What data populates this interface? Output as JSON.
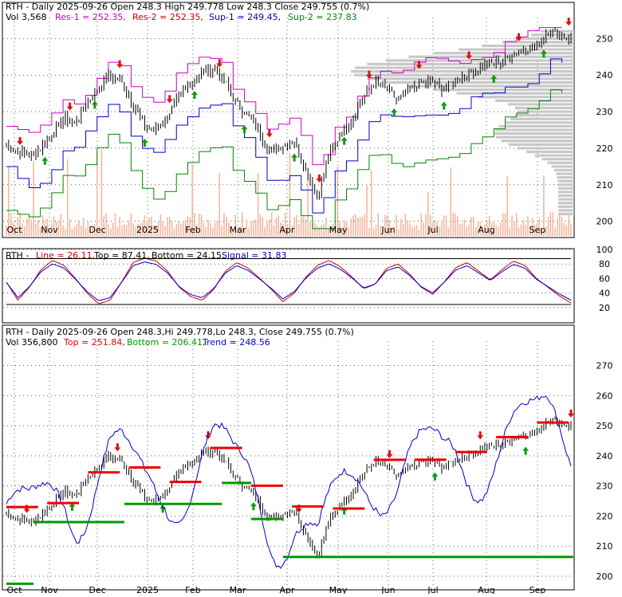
{
  "colors": {
    "res": "#cc00cc",
    "sup1": "#0000cc",
    "sup2": "#008800",
    "down": "#dd1111",
    "up": "#119911",
    "volume": "#f4b8a0",
    "price": "#000000",
    "line": "#cc0000",
    "signal": "#0000cc",
    "trend": "#0000cc",
    "top": "#ee0000",
    "bottom": "#009900",
    "profile": "#c8c8c8"
  },
  "panel1": {
    "title": "RTH - Daily 2025-09-26 Open 248.3  High 249.778  Low 248.3  Close 249.755 (0.7%)",
    "vol_label": "Vol 3,568",
    "res1_label": "Res-1 = 252.35,",
    "res2_label": "Res-2 = 252.35,",
    "sup1_label": "Sup-1 = 249.45,",
    "sup2_label": "Sup-2 = 237.83"
  },
  "panel2": {
    "name_label": "RTH -",
    "line_label": "Line = 26.11,",
    "top_label": "Top = 87.41,",
    "bottom_label": "Bottom = 24.15,",
    "signal_label": "Signal = 31.83"
  },
  "panel3": {
    "title": "RTH - Daily 2025-09-26 Open 248.3,Hi 249.778,Lo 248.3, Close 249.755 (0.7%)",
    "vol_label": "Vol 356,800",
    "top_label": "Top = 251.84,",
    "bottom_label": "Bottom = 206.41,",
    "trend_label": "Trend = 248.56"
  },
  "chart_data": [
    {
      "type": "line",
      "subtype": "candlestick with support/resistance and volume",
      "x_labels": [
        "Oct",
        "Nov",
        "Dec",
        "2025",
        "Feb",
        "Mar",
        "Apr",
        "May",
        "Jun",
        "Jul",
        "Aug",
        "Sep"
      ],
      "ylim": [
        196,
        254
      ],
      "yticks": [
        200,
        210,
        220,
        230,
        240,
        250
      ],
      "close_series": [
        221,
        219,
        218,
        220,
        224,
        228,
        227,
        232,
        237,
        240,
        238,
        232,
        226,
        225,
        229,
        234,
        238,
        241,
        242,
        238,
        232,
        229,
        224,
        219,
        221,
        222,
        214,
        207,
        218,
        224,
        228,
        234,
        238,
        236,
        233,
        236,
        238,
        238,
        236,
        239,
        240,
        242,
        243,
        244,
        246,
        247,
        248,
        252,
        251,
        249.755
      ],
      "series": [
        {
          "name": "Res-1",
          "value": 252.35
        },
        {
          "name": "Res-2",
          "value": 252.35
        },
        {
          "name": "Sup-1",
          "value": 249.45
        },
        {
          "name": "Sup-2",
          "value": 237.83
        }
      ],
      "volume_last": 3568
    },
    {
      "type": "line",
      "ylim": [
        0,
        100
      ],
      "yticks": [
        20,
        40,
        60,
        80,
        100
      ],
      "series": [
        {
          "name": "Line",
          "last": 26.11,
          "values": [
            55,
            30,
            48,
            72,
            85,
            78,
            60,
            40,
            25,
            30,
            55,
            82,
            88,
            84,
            70,
            48,
            35,
            30,
            45,
            70,
            82,
            74,
            60,
            45,
            28,
            40,
            62,
            78,
            85,
            76,
            62,
            46,
            52,
            74,
            80,
            66,
            48,
            38,
            55,
            75,
            82,
            70,
            58,
            72,
            84,
            78,
            60,
            48,
            36,
            26.11
          ]
        },
        {
          "name": "Signal",
          "last": 31.83
        },
        {
          "name": "Top",
          "value": 87.41
        },
        {
          "name": "Bottom",
          "value": 24.15
        }
      ]
    },
    {
      "type": "line",
      "subtype": "price with trend envelope",
      "x_labels": [
        "Oct",
        "Nov",
        "Dec",
        "2025",
        "Feb",
        "Mar",
        "Apr",
        "May",
        "Jun",
        "Jul",
        "Aug",
        "Sep"
      ],
      "ylim": [
        196,
        276
      ],
      "yticks": [
        200,
        210,
        220,
        230,
        240,
        250,
        260,
        270
      ],
      "series": [
        {
          "name": "Top",
          "value": 251.84
        },
        {
          "name": "Bottom",
          "value": 206.41
        },
        {
          "name": "Trend",
          "value": 248.56
        }
      ],
      "volume": 356800
    }
  ]
}
